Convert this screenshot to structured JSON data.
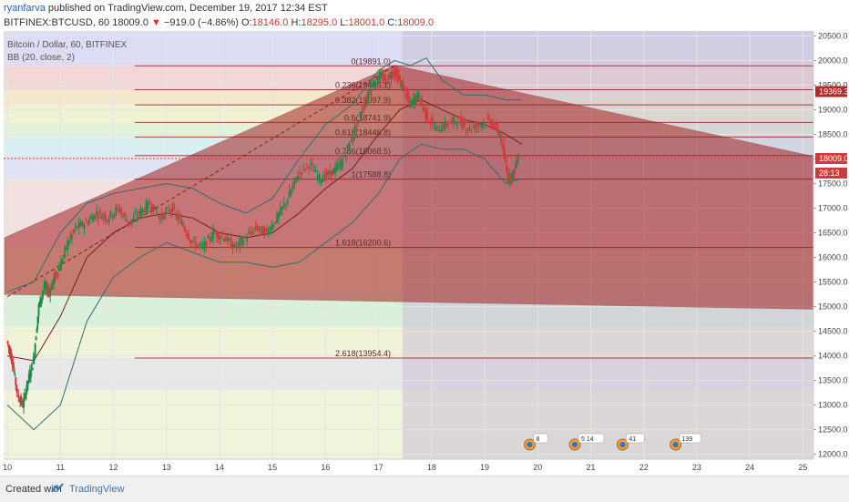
{
  "header": {
    "author": "ryanfarva",
    "published": " published on TradingView.com, December 19, 2017 12:34 EST",
    "symbol": "BITFINEX:BTCUSD, 60",
    "last": "18009.0",
    "arrow": "▼",
    "change": "−919.0 (−4.86%)",
    "o_label": "O:",
    "o_value": "18146.0",
    "h_label": "H:",
    "h_value": "18295.0",
    "l_label": "L:",
    "l_value": "18001.0",
    "c_label": "C:",
    "c_value": "18009.0"
  },
  "legend": {
    "title": "Bitcoin / Dollar, 60, BITFINEX",
    "indicator": "BB (20, close, 2)"
  },
  "footer": {
    "created": "Created with",
    "brand": "TradingView"
  },
  "chart_data": {
    "type": "candlestick",
    "x_ticks": [
      "10",
      "11",
      "12",
      "13",
      "14",
      "15",
      "16",
      "17",
      "18",
      "19",
      "20",
      "21",
      "22",
      "23",
      "24",
      "25"
    ],
    "y_ticks": [
      "20500.0",
      "20000.0",
      "19500.0",
      "19000.0",
      "18500.0",
      "18000.0",
      "17500.0",
      "17000.0",
      "16500.0",
      "16000.0",
      "15500.0",
      "15000.0",
      "14500.0",
      "14000.0",
      "13500.0",
      "13000.0",
      "12500.0",
      "12000.0"
    ],
    "ylim": [
      11900,
      20600
    ],
    "xlim": [
      9.93,
      25.2
    ],
    "price_labels": [
      {
        "value": 19369.3,
        "text": "19369.3",
        "color": "#b22a2a"
      },
      {
        "value": 18009.0,
        "text": "18009.0",
        "color": "#d23a3a"
      },
      {
        "text": "28:13",
        "color": "#d23a3a"
      }
    ],
    "fib_levels": [
      {
        "label": "0(19891.0)",
        "value": 19891.0
      },
      {
        "label": "0.236(19405.1)",
        "value": 19405.1
      },
      {
        "label": "0.382(19097.9)",
        "value": 19097.9
      },
      {
        "label": "0.5(18741.9)",
        "value": 18741.9
      },
      {
        "label": "0.618(18446.8)",
        "value": 18446.8
      },
      {
        "label": "0.786(18068.5)",
        "value": 18068.5
      },
      {
        "label": "1(17588.8)",
        "value": 17588.8
      },
      {
        "label": "1.618(16200.6)",
        "value": 16200.6
      },
      {
        "label": "2.618(13954.4)",
        "value": 13954.4
      }
    ],
    "close_path": [
      [
        10.0,
        14300
      ],
      [
        10.1,
        13900
      ],
      [
        10.2,
        13200
      ],
      [
        10.3,
        13000
      ],
      [
        10.4,
        13500
      ],
      [
        10.5,
        13900
      ],
      [
        10.6,
        15000
      ],
      [
        10.7,
        15400
      ],
      [
        10.8,
        15300
      ],
      [
        10.9,
        15600
      ],
      [
        11.0,
        15800
      ],
      [
        11.15,
        16300
      ],
      [
        11.3,
        16600
      ],
      [
        11.5,
        16700
      ],
      [
        11.7,
        16900
      ],
      [
        11.9,
        16800
      ],
      [
        12.1,
        17000
      ],
      [
        12.3,
        16700
      ],
      [
        12.5,
        16900
      ],
      [
        12.7,
        17100
      ],
      [
        12.9,
        16800
      ],
      [
        13.1,
        17000
      ],
      [
        13.3,
        16700
      ],
      [
        13.5,
        16300
      ],
      [
        13.7,
        16200
      ],
      [
        13.9,
        16500
      ],
      [
        14.1,
        16400
      ],
      [
        14.3,
        16200
      ],
      [
        14.5,
        16400
      ],
      [
        14.7,
        16600
      ],
      [
        14.9,
        16500
      ],
      [
        15.1,
        16800
      ],
      [
        15.3,
        17200
      ],
      [
        15.5,
        17700
      ],
      [
        15.7,
        17900
      ],
      [
        15.9,
        17600
      ],
      [
        16.1,
        17700
      ],
      [
        16.3,
        17900
      ],
      [
        16.5,
        18400
      ],
      [
        16.7,
        19000
      ],
      [
        16.85,
        19400
      ],
      [
        17.0,
        19700
      ],
      [
        17.15,
        19600
      ],
      [
        17.3,
        19800
      ],
      [
        17.45,
        19500
      ],
      [
        17.6,
        19100
      ],
      [
        17.75,
        19300
      ],
      [
        17.9,
        18900
      ],
      [
        18.1,
        18600
      ],
      [
        18.3,
        18700
      ],
      [
        18.5,
        18800
      ],
      [
        18.7,
        18600
      ],
      [
        18.9,
        18700
      ],
      [
        19.1,
        18800
      ],
      [
        19.3,
        18500
      ],
      [
        19.45,
        17600
      ],
      [
        19.55,
        17700
      ],
      [
        19.65,
        18100
      ]
    ],
    "bb_upper": [
      [
        10.0,
        15300
      ],
      [
        10.5,
        15500
      ],
      [
        11.0,
        16500
      ],
      [
        11.5,
        17100
      ],
      [
        12.0,
        17300
      ],
      [
        12.5,
        17400
      ],
      [
        13.0,
        17500
      ],
      [
        13.5,
        17400
      ],
      [
        14.0,
        17100
      ],
      [
        14.5,
        16900
      ],
      [
        15.0,
        17200
      ],
      [
        15.5,
        18000
      ],
      [
        16.0,
        18700
      ],
      [
        16.5,
        19100
      ],
      [
        17.0,
        19800
      ],
      [
        17.3,
        20000
      ],
      [
        17.6,
        19900
      ],
      [
        17.9,
        20050
      ],
      [
        18.2,
        19600
      ],
      [
        18.6,
        19300
      ],
      [
        19.0,
        19300
      ],
      [
        19.4,
        19200
      ],
      [
        19.7,
        19200
      ]
    ],
    "bb_middle": [
      [
        10.0,
        14000
      ],
      [
        10.5,
        13900
      ],
      [
        11.0,
        14800
      ],
      [
        11.5,
        16000
      ],
      [
        12.0,
        16500
      ],
      [
        12.5,
        16800
      ],
      [
        13.0,
        16900
      ],
      [
        13.5,
        16800
      ],
      [
        14.0,
        16500
      ],
      [
        14.5,
        16400
      ],
      [
        15.0,
        16500
      ],
      [
        15.5,
        16900
      ],
      [
        16.0,
        17400
      ],
      [
        16.5,
        17800
      ],
      [
        17.0,
        18500
      ],
      [
        17.4,
        19000
      ],
      [
        17.8,
        19200
      ],
      [
        18.2,
        19000
      ],
      [
        18.6,
        18800
      ],
      [
        19.0,
        18700
      ],
      [
        19.4,
        18500
      ],
      [
        19.7,
        18300
      ]
    ],
    "bb_lower": [
      [
        10.0,
        13000
      ],
      [
        10.5,
        12500
      ],
      [
        11.0,
        13000
      ],
      [
        11.5,
        14700
      ],
      [
        12.0,
        15600
      ],
      [
        12.5,
        16000
      ],
      [
        13.0,
        16300
      ],
      [
        13.5,
        16100
      ],
      [
        14.0,
        15900
      ],
      [
        14.5,
        15900
      ],
      [
        15.0,
        15800
      ],
      [
        15.5,
        15900
      ],
      [
        16.0,
        16300
      ],
      [
        16.5,
        16700
      ],
      [
        17.0,
        17300
      ],
      [
        17.4,
        18000
      ],
      [
        17.8,
        18300
      ],
      [
        18.2,
        18200
      ],
      [
        18.6,
        18200
      ],
      [
        19.0,
        18000
      ],
      [
        19.4,
        17500
      ],
      [
        19.7,
        17600
      ]
    ],
    "events": [
      {
        "x": 19.85,
        "label": "8"
      },
      {
        "x": 20.7,
        "label": "5 14"
      },
      {
        "x": 21.6,
        "label": "41"
      },
      {
        "x": 22.6,
        "label": "139"
      }
    ]
  }
}
